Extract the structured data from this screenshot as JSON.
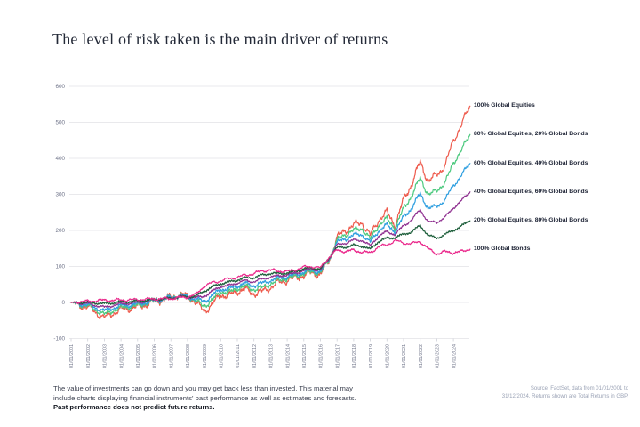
{
  "title": "The level of risk taken is the main driver of returns",
  "footer": {
    "disclaimer_line1": "The value of investments can go down and you may get back less than invested. This material may",
    "disclaimer_line2": "include charts displaying financial instruments' past performance as well as estimates and forecasts.",
    "disclaimer_bold": "Past performance does not predict future returns.",
    "source_line1": "Source: FactSet, data from 01/01/2001 to",
    "source_line2": "31/12/2024. Returns shown are Total Returns in GBP."
  },
  "chart_data": {
    "type": "line",
    "title": "The level of risk taken is the main driver of returns",
    "xlabel": "",
    "ylabel": "",
    "ylim": [
      -100,
      600
    ],
    "y_ticks": [
      600,
      500,
      400,
      300,
      200,
      100,
      0,
      -100
    ],
    "grid": "horizontal",
    "legend_position": "right-of-line-ends",
    "x_tick_labels": [
      "01/01/2001",
      "01/01/2002",
      "01/01/2003",
      "01/01/2004",
      "01/01/2005",
      "01/01/2006",
      "01/01/2007",
      "01/01/2008",
      "01/01/2009",
      "01/01/2010",
      "01/01/2011",
      "01/01/2012",
      "01/01/2013",
      "01/01/2014",
      "01/01/2015",
      "01/01/2016",
      "01/01/2017",
      "01/01/2018",
      "01/01/2019",
      "01/01/2020",
      "01/01/2021",
      "01/01/2022",
      "01/01/2023",
      "01/01/2024"
    ],
    "x_range_years": [
      2001,
      2025
    ],
    "anchors_t_start": 2001.0,
    "anchor_years_step": 0.5,
    "equities_anchor_values": [
      0,
      -8,
      -12,
      -28,
      -43,
      -30,
      -20,
      -16,
      -13,
      -5,
      3,
      8,
      15,
      22,
      18,
      0,
      -25,
      -5,
      22,
      18,
      32,
      36,
      25,
      30,
      42,
      55,
      62,
      68,
      75,
      83,
      78,
      115,
      180,
      200,
      215,
      222,
      185,
      230,
      250,
      215,
      285,
      330,
      390,
      335,
      355,
      380,
      450,
      495,
      545
    ],
    "bonds_anchor_values": [
      0,
      2,
      3,
      5,
      6,
      6,
      7,
      7,
      8,
      9,
      10,
      10,
      11,
      13,
      15,
      22,
      45,
      55,
      60,
      66,
      70,
      76,
      80,
      88,
      90,
      87,
      86,
      91,
      98,
      100,
      96,
      125,
      145,
      142,
      145,
      140,
      138,
      155,
      160,
      172,
      165,
      163,
      170,
      148,
      135,
      141,
      138,
      142,
      148
    ],
    "series": [
      {
        "label": "100% Global Equities",
        "color": "#ee5b4d",
        "equity_mix": 1.0,
        "end_value": 545
      },
      {
        "label": "80% Global Equities, 20% Global Bonds",
        "color": "#4cc97e",
        "equity_mix": 0.8,
        "end_value": 466
      },
      {
        "label": "60% Global Equities, 40% Global Bonds",
        "color": "#2f9fe0",
        "equity_mix": 0.6,
        "end_value": 386
      },
      {
        "label": "40% Global Equities, 60% Global Bonds",
        "color": "#8f3090",
        "equity_mix": 0.4,
        "end_value": 307
      },
      {
        "label": "20% Global Equities, 80% Global Bonds",
        "color": "#1e5f3b",
        "equity_mix": 0.2,
        "end_value": 227
      },
      {
        "label": "100% Global Bonds",
        "color": "#ea2a8c",
        "equity_mix": 0.0,
        "end_value": 148
      }
    ],
    "axis_color": "#e9e9ec",
    "tick_text_color": "#70758a"
  }
}
